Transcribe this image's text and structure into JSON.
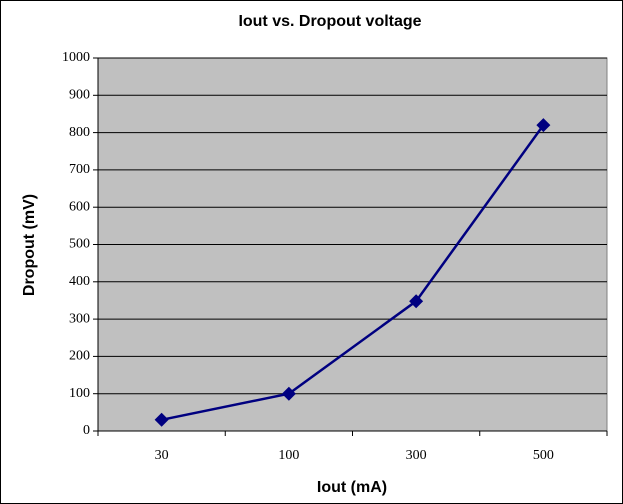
{
  "chart_data": {
    "type": "line",
    "title": "Iout vs. Dropout voltage",
    "x_label": "Iout (mA)",
    "y_label": "Dropout (mV)",
    "categories": [
      "30",
      "100",
      "300",
      "500"
    ],
    "series": [
      {
        "name": "Dropout",
        "color": "#000080",
        "values": [
          30,
          100,
          348,
          820
        ]
      }
    ],
    "ylim": [
      0,
      1000
    ],
    "yticks": [
      0,
      100,
      200,
      300,
      400,
      500,
      600,
      700,
      800,
      900,
      1000
    ],
    "grid": true,
    "legend": false
  }
}
